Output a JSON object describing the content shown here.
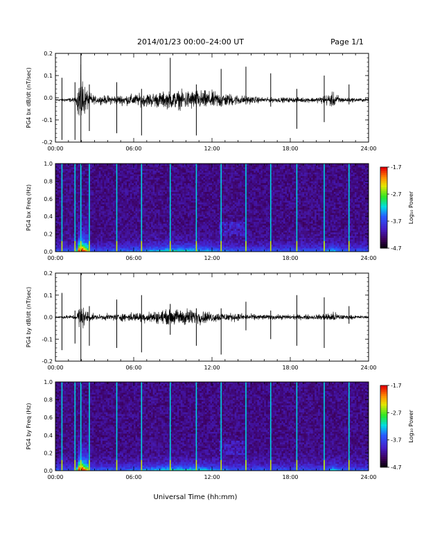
{
  "header": {
    "title": "2014/01/23  00:00–24:00 UT",
    "page": "Page 1/1"
  },
  "x_axis": {
    "label": "Universal Time (hh:mm)",
    "ticks": [
      "00:00",
      "06:00",
      "12:00",
      "18:00",
      "24:00"
    ]
  },
  "colorbar": {
    "label": "Log₁₀ Power",
    "ticks": [
      "-1.7",
      "-2.7",
      "-3.7",
      "-4.7"
    ]
  },
  "chart_data": [
    {
      "type": "line",
      "ylabel": "PG4 bx dB/dt (nT/sec)",
      "xlim": [
        0,
        24
      ],
      "ylim": [
        -0.2,
        0.2
      ],
      "y_ticks": [
        "0.2",
        "0.1",
        "0.0",
        "-0.1",
        "-0.2"
      ],
      "baseline": -0.01,
      "envelope": [
        {
          "x": 0,
          "amp": 0.004
        },
        {
          "x": 1.6,
          "amp": 0.01
        },
        {
          "x": 1.9,
          "amp": 0.12
        },
        {
          "x": 2.3,
          "amp": 0.05
        },
        {
          "x": 3.0,
          "amp": 0.015
        },
        {
          "x": 5.0,
          "amp": 0.02
        },
        {
          "x": 6.5,
          "amp": 0.025
        },
        {
          "x": 9.0,
          "amp": 0.035
        },
        {
          "x": 10.5,
          "amp": 0.04
        },
        {
          "x": 12.0,
          "amp": 0.035
        },
        {
          "x": 14.0,
          "amp": 0.02
        },
        {
          "x": 16.0,
          "amp": 0.01
        },
        {
          "x": 20.0,
          "amp": 0.01
        },
        {
          "x": 21.3,
          "amp": 0.03
        },
        {
          "x": 22.0,
          "amp": 0.01
        },
        {
          "x": 24,
          "amp": 0.006
        }
      ],
      "spikes": [
        {
          "x": 0.5,
          "hi": 0.09,
          "lo": -0.19
        },
        {
          "x": 1.5,
          "hi": 0.07,
          "lo": -0.19
        },
        {
          "x": 1.95,
          "hi": 0.21,
          "lo": -0.21
        },
        {
          "x": 2.6,
          "hi": 0.06,
          "lo": -0.15
        },
        {
          "x": 4.7,
          "hi": 0.07,
          "lo": -0.16
        },
        {
          "x": 6.6,
          "hi": 0.04,
          "lo": -0.17
        },
        {
          "x": 8.8,
          "hi": 0.18,
          "lo": -0.03
        },
        {
          "x": 10.8,
          "hi": 0.06,
          "lo": -0.17
        },
        {
          "x": 12.7,
          "hi": 0.13,
          "lo": -0.04
        },
        {
          "x": 14.6,
          "hi": 0.14,
          "lo": -0.03
        },
        {
          "x": 16.5,
          "hi": 0.11,
          "lo": -0.04
        },
        {
          "x": 18.5,
          "hi": 0.04,
          "lo": -0.14
        },
        {
          "x": 20.6,
          "hi": 0.1,
          "lo": -0.11
        },
        {
          "x": 22.5,
          "hi": 0.06,
          "lo": -0.03
        }
      ]
    },
    {
      "type": "heatmap",
      "ylabel": "PG4 bx Freq (Hz)",
      "xlim": [
        0,
        24
      ],
      "ylim": [
        0,
        1.0
      ],
      "y_ticks": [
        "1.0",
        "0.8",
        "0.6",
        "0.4",
        "0.2",
        "0.0"
      ],
      "color_range": [
        -4.7,
        -1.7
      ],
      "scale": "log10 power",
      "vertical_lines": [
        0.5,
        1.5,
        1.95,
        2.6,
        4.7,
        6.6,
        8.8,
        10.8,
        12.7,
        14.6,
        16.5,
        18.5,
        20.6,
        22.5
      ]
    },
    {
      "type": "line",
      "ylabel": "PG4 by dB/dt (nT/sec)",
      "xlim": [
        0,
        24
      ],
      "ylim": [
        -0.2,
        0.2
      ],
      "y_ticks": [
        "0.2",
        "0.1",
        "0.0",
        "-0.1",
        "-0.2"
      ],
      "baseline": 0.0,
      "envelope": [
        {
          "x": 0,
          "amp": 0.004
        },
        {
          "x": 1.6,
          "amp": 0.01
        },
        {
          "x": 1.9,
          "amp": 0.06
        },
        {
          "x": 2.3,
          "amp": 0.03
        },
        {
          "x": 3.0,
          "amp": 0.01
        },
        {
          "x": 5.0,
          "amp": 0.015
        },
        {
          "x": 6.5,
          "amp": 0.02
        },
        {
          "x": 9.0,
          "amp": 0.03
        },
        {
          "x": 10.0,
          "amp": 0.035
        },
        {
          "x": 12.0,
          "amp": 0.02
        },
        {
          "x": 14.0,
          "amp": 0.015
        },
        {
          "x": 16.0,
          "amp": 0.01
        },
        {
          "x": 20.0,
          "amp": 0.01
        },
        {
          "x": 21.3,
          "amp": 0.02
        },
        {
          "x": 22.0,
          "amp": 0.01
        },
        {
          "x": 24,
          "amp": 0.005
        }
      ],
      "spikes": [
        {
          "x": 0.5,
          "hi": 0.11,
          "lo": -0.15
        },
        {
          "x": 1.5,
          "hi": 0.03,
          "lo": -0.12
        },
        {
          "x": 1.95,
          "hi": 0.2,
          "lo": -0.2
        },
        {
          "x": 2.6,
          "hi": 0.05,
          "lo": -0.13
        },
        {
          "x": 4.7,
          "hi": 0.08,
          "lo": -0.14
        },
        {
          "x": 6.6,
          "hi": 0.1,
          "lo": -0.16
        },
        {
          "x": 8.8,
          "hi": 0.06,
          "lo": -0.08
        },
        {
          "x": 10.8,
          "hi": 0.04,
          "lo": -0.13
        },
        {
          "x": 12.7,
          "hi": 0.04,
          "lo": -0.17
        },
        {
          "x": 14.6,
          "hi": 0.07,
          "lo": -0.06
        },
        {
          "x": 16.5,
          "hi": 0.03,
          "lo": -0.1
        },
        {
          "x": 18.5,
          "hi": 0.1,
          "lo": -0.13
        },
        {
          "x": 20.6,
          "hi": 0.09,
          "lo": -0.14
        },
        {
          "x": 22.5,
          "hi": 0.05,
          "lo": -0.03
        }
      ]
    },
    {
      "type": "heatmap",
      "ylabel": "PG4 by Freq (Hz)",
      "xlim": [
        0,
        24
      ],
      "ylim": [
        0,
        1.0
      ],
      "y_ticks": [
        "1.0",
        "0.8",
        "0.6",
        "0.4",
        "0.2",
        "0.0"
      ],
      "color_range": [
        -4.7,
        -1.7
      ],
      "scale": "log10 power",
      "vertical_lines": [
        0.5,
        1.5,
        1.95,
        2.6,
        4.7,
        6.6,
        8.8,
        10.8,
        12.7,
        14.6,
        16.5,
        18.5,
        20.6,
        22.5
      ]
    }
  ]
}
